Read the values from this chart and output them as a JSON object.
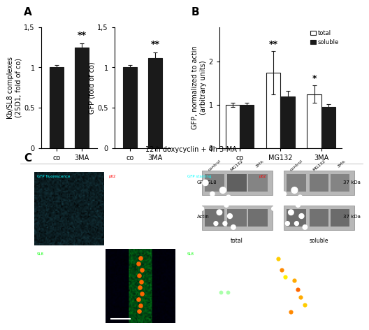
{
  "panel_A_left": {
    "categories": [
      "co",
      "3MA"
    ],
    "values": [
      1.0,
      1.25
    ],
    "errors": [
      0.03,
      0.05
    ],
    "ylabel": "Kb/SL8 complexes\n(25D1, fold of co)",
    "ylim": [
      0,
      1.5
    ],
    "yticks": [
      0,
      0.5,
      1,
      1.5
    ],
    "yticklabels": [
      "0",
      "0,5",
      "1",
      "1,5"
    ],
    "sig_label": "**",
    "bar_color": "#1a1a1a"
  },
  "panel_A_right": {
    "categories": [
      "co",
      "3MA"
    ],
    "values": [
      1.0,
      1.12
    ],
    "errors": [
      0.03,
      0.07
    ],
    "ylabel": "GFP (fold of co)",
    "ylim": [
      0,
      1.5
    ],
    "yticks": [
      0,
      0.5,
      1,
      1.5
    ],
    "yticklabels": [
      "0",
      "0,5",
      "1",
      "1,5"
    ],
    "sig_label": "**",
    "bar_color": "#1a1a1a"
  },
  "panel_B_bars": {
    "categories": [
      "co",
      "MG132",
      "3MA"
    ],
    "total_values": [
      1.0,
      1.75,
      1.25
    ],
    "soluble_values": [
      1.0,
      1.2,
      0.95
    ],
    "total_errors": [
      0.05,
      0.5,
      0.2
    ],
    "soluble_errors": [
      0.05,
      0.12,
      0.07
    ],
    "ylabel": "GFP, normalized to actin\n(arbitrary units)",
    "ylim": [
      0,
      2.8
    ],
    "yticks": [
      0,
      1,
      2
    ],
    "sig_total": [
      "",
      "**",
      "*"
    ],
    "total_color": "#ffffff",
    "soluble_color": "#1a1a1a",
    "legend_total": "total",
    "legend_soluble": "soluble"
  },
  "panel_C_title": "12 h doxycyclin + 4h 3-MA",
  "label_colors": {
    "GFP fluorescence": "#00ffff",
    "GFP staining": "#00ffff",
    "p62": "#ff0000",
    "SL8": "#00ff00"
  },
  "bg_color": "#ffffff",
  "bar_edge_color": "#1a1a1a",
  "tick_label_fontsize": 7,
  "axis_label_fontsize": 7,
  "sig_fontsize": 9
}
